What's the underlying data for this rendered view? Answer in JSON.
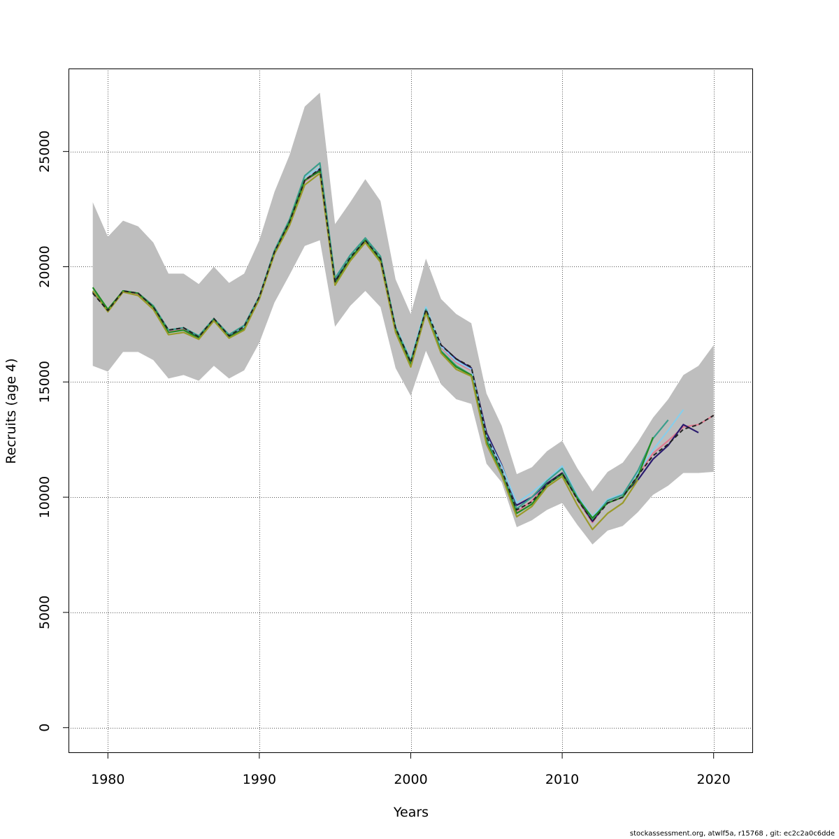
{
  "chart_data": {
    "type": "line",
    "xlabel": "Years",
    "ylabel": "Recruits (age 4)",
    "xlim": [
      1977.4,
      2022.6
    ],
    "ylim": [
      -1100,
      28600
    ],
    "xticks": [
      1980,
      1990,
      2000,
      2010,
      2020
    ],
    "yticks": [
      0,
      5000,
      10000,
      15000,
      20000,
      25000
    ],
    "grid": true,
    "legend": "none",
    "band": {
      "x": [
        1979,
        1980,
        1981,
        1982,
        1983,
        1984,
        1985,
        1986,
        1987,
        1988,
        1989,
        1990,
        1991,
        1992,
        1993,
        1994,
        1995,
        1996,
        1997,
        1998,
        1999,
        2000,
        2001,
        2002,
        2003,
        2004,
        2005,
        2006,
        2007,
        2008,
        2009,
        2010,
        2011,
        2012,
        2013,
        2014,
        2015,
        2016,
        2017,
        2018,
        2019,
        2020
      ],
      "lower": [
        15700,
        15450,
        16300,
        16300,
        15950,
        15150,
        15300,
        15050,
        15700,
        15150,
        15500,
        16700,
        18450,
        19650,
        20900,
        21150,
        17400,
        18300,
        18950,
        18250,
        15600,
        14400,
        16350,
        14900,
        14250,
        14050,
        11450,
        10650,
        8700,
        9000,
        9450,
        9750,
        8800,
        7950,
        8550,
        8750,
        9350,
        10100,
        10500,
        11050,
        11050,
        11100
      ],
      "upper": [
        22800,
        21300,
        22000,
        21750,
        21050,
        19700,
        19700,
        19250,
        20000,
        19300,
        19700,
        21150,
        23250,
        24850,
        26950,
        27550,
        21850,
        22800,
        23800,
        22850,
        19450,
        17950,
        20350,
        18600,
        17950,
        17550,
        14500,
        13100,
        11000,
        11300,
        12000,
        12450,
        11250,
        10250,
        11100,
        11500,
        12400,
        13450,
        14250,
        15300,
        15700,
        16600
      ],
      "color": "#bebebe"
    },
    "series": [
      {
        "color": "#e07b91",
        "end": 2020,
        "values": [
          18900,
          18100,
          18950,
          18800,
          18250,
          17200,
          17300,
          16950,
          17700,
          17000,
          17350,
          18650,
          20600,
          21900,
          23700,
          24150,
          19300,
          20300,
          21100,
          20300,
          17300,
          15800,
          18100,
          16500,
          15850,
          15500,
          12550,
          11150,
          9350,
          9850,
          10550,
          11050,
          9900,
          8900,
          9850,
          10100,
          10950,
          11900,
          12450,
          13050,
          13150,
          13550
        ]
      },
      {
        "color": "#2a1a6e",
        "end": 2019,
        "values": [
          18900,
          18100,
          18950,
          18850,
          18300,
          17250,
          17350,
          16950,
          17700,
          17000,
          17400,
          18700,
          20650,
          21950,
          23750,
          24200,
          19400,
          20400,
          21150,
          20350,
          17350,
          15900,
          18150,
          16600,
          16000,
          15600,
          12800,
          11400,
          9650,
          10000,
          10600,
          11050,
          9950,
          8950,
          9850,
          10100,
          10750,
          11650,
          12250,
          13150,
          12800
        ]
      },
      {
        "color": "#87ceeb",
        "end": 2018,
        "values": [
          18950,
          18100,
          18950,
          18850,
          18300,
          17250,
          17350,
          17000,
          17700,
          17050,
          17400,
          18700,
          20650,
          22000,
          23900,
          24300,
          19500,
          20450,
          21200,
          20400,
          17400,
          15950,
          18250,
          16550,
          15900,
          15550,
          12650,
          11350,
          9750,
          10200,
          10750,
          11350,
          10050,
          9150,
          9900,
          10150,
          11050,
          12050,
          12900,
          13800
        ]
      },
      {
        "color": "#3a9e8c",
        "end": 2017,
        "values": [
          18950,
          18100,
          18950,
          18850,
          18300,
          17250,
          17350,
          17000,
          17750,
          17050,
          17450,
          18700,
          20700,
          22050,
          23950,
          24500,
          19500,
          20500,
          21250,
          20450,
          17350,
          15900,
          18150,
          16350,
          15700,
          15300,
          12500,
          11100,
          9500,
          10000,
          10700,
          11250,
          10000,
          9050,
          9850,
          10100,
          11150,
          12550,
          13350
        ]
      },
      {
        "color": "#228b22",
        "end": 2016,
        "values": [
          19100,
          18150,
          18950,
          18850,
          18250,
          17150,
          17250,
          16900,
          17700,
          16950,
          17300,
          18600,
          20600,
          21950,
          23750,
          24150,
          19300,
          20350,
          21150,
          20300,
          17250,
          15750,
          18050,
          16300,
          15650,
          15300,
          12400,
          11000,
          9300,
          9700,
          10550,
          11000,
          9950,
          9100,
          9750,
          10000,
          10900,
          12600
        ]
      },
      {
        "color": "#9a9a2a",
        "end": 2015,
        "values": [
          18950,
          18050,
          18900,
          18750,
          18150,
          17050,
          17150,
          16850,
          17650,
          16900,
          17250,
          18600,
          20550,
          21800,
          23550,
          24050,
          19200,
          20250,
          21050,
          20200,
          17150,
          15650,
          18000,
          16250,
          15550,
          15250,
          12300,
          10950,
          9150,
          9600,
          10450,
          10900,
          9650,
          8600,
          9300,
          9750,
          10750
        ]
      },
      {
        "color": "#222222",
        "dashed": true,
        "end": 2020,
        "values": [
          18850,
          18100,
          18950,
          18850,
          18250,
          17250,
          17350,
          16950,
          17750,
          17000,
          17400,
          18700,
          20650,
          21950,
          23750,
          24250,
          19350,
          20400,
          21150,
          20350,
          17350,
          15850,
          18150,
          16600,
          16000,
          15650,
          12650,
          11200,
          9450,
          9800,
          10550,
          11050,
          9900,
          8950,
          9750,
          10000,
          10950,
          11800,
          12300,
          12950,
          13150,
          13550
        ]
      }
    ]
  },
  "footer": "stockassessment.org, atwlf5a, r15768 , git: ec2c2a0c6dde"
}
